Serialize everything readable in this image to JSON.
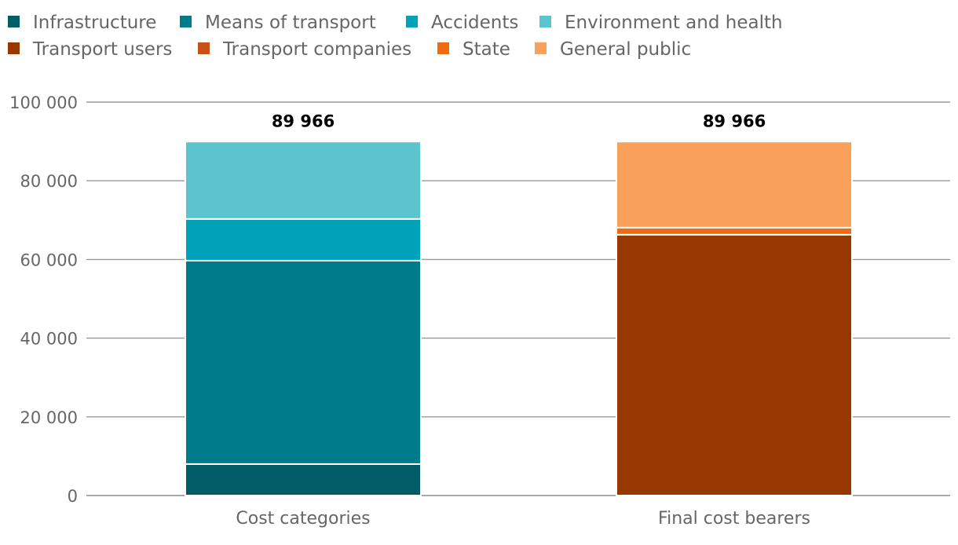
{
  "chart_data": {
    "type": "bar",
    "stacked": true,
    "categories": [
      "Cost categories",
      "Final cost bearers"
    ],
    "series": [
      {
        "name": "Infrastructure",
        "color": "#005c66",
        "values": [
          8000,
          0
        ]
      },
      {
        "name": "Means of transport",
        "color": "#007b8a",
        "values": [
          51700,
          0
        ]
      },
      {
        "name": "Accidents",
        "color": "#00a2b9",
        "values": [
          10600,
          0
        ]
      },
      {
        "name": "Environment and health",
        "color": "#5bc4cf",
        "values": [
          19666,
          0
        ]
      },
      {
        "name": "Transport users",
        "color": "#973800",
        "values": [
          0,
          66300
        ]
      },
      {
        "name": "Transport companies",
        "color": "#c8501a",
        "values": [
          0,
          0
        ]
      },
      {
        "name": "State",
        "color": "#f06a10",
        "values": [
          0,
          1800
        ]
      },
      {
        "name": "General public",
        "color": "#f9a05a",
        "values": [
          0,
          21866
        ]
      }
    ],
    "totals": [
      "89 966",
      "89 966"
    ],
    "ylim": [
      0,
      100000
    ],
    "yticks": [
      {
        "value": 0,
        "label": "0"
      },
      {
        "value": 20000,
        "label": "20 000"
      },
      {
        "value": 40000,
        "label": "40 000"
      },
      {
        "value": 60000,
        "label": "60 000"
      },
      {
        "value": 80000,
        "label": "80 000"
      },
      {
        "value": 100000,
        "label": "100 000"
      }
    ],
    "grid": true,
    "legend_position": "top",
    "title": "",
    "xlabel": "",
    "ylabel": ""
  }
}
